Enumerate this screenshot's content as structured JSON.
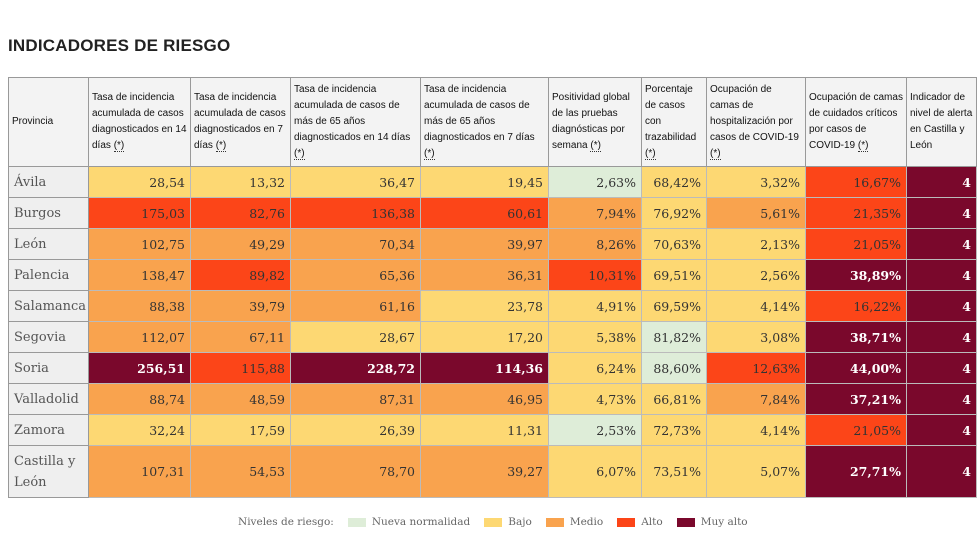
{
  "title": "INDICADORES DE RIESGO",
  "colors": {
    "G": "#deedd8",
    "Y": "#fdd873",
    "O": "#f9a34e",
    "R": "#fc4518",
    "D": "#7a082c"
  },
  "headers": [
    {
      "text": "Provincia",
      "ast": ""
    },
    {
      "text": "Tasa de incidencia acumulada de casos diagnosticados en 14 días ",
      "ast": "(*)"
    },
    {
      "text": "Tasa de incidencia acumulada de casos diagnosticados en 7 días ",
      "ast": "(*)"
    },
    {
      "text": "Tasa de incidencia acumulada de casos de más de 65 años diagnosticados en 14 días ",
      "ast": "(*)"
    },
    {
      "text": "Tasa de incidencia acumulada de casos de más de 65 años diagnosticados en 7 días ",
      "ast": "(*)"
    },
    {
      "text": "Positividad global de las pruebas diagnósticas por semana ",
      "ast": "(*)"
    },
    {
      "text": "Porcentaje de casos con trazabilidad ",
      "ast": "(*)"
    },
    {
      "text": "Ocupación de camas de hospitalización por casos de COVID-19 ",
      "ast": "(*)"
    },
    {
      "text": "Ocupación de camas de cuidados críticos por casos de COVID-19 ",
      "ast": "(*)"
    },
    {
      "text": "Indicador de nivel de alerta en Castilla y León",
      "ast": ""
    }
  ],
  "rows": [
    {
      "name": "Ávila",
      "values": [
        "28,54",
        "13,32",
        "36,47",
        "19,45",
        "2,63%",
        "68,42%",
        "3,32%",
        "16,67%",
        "4"
      ],
      "levels": [
        "Y",
        "Y",
        "Y",
        "Y",
        "G",
        "Y",
        "Y",
        "R",
        "D"
      ]
    },
    {
      "name": "Burgos",
      "values": [
        "175,03",
        "82,76",
        "136,38",
        "60,61",
        "7,94%",
        "76,92%",
        "5,61%",
        "21,35%",
        "4"
      ],
      "levels": [
        "R",
        "R",
        "R",
        "R",
        "O",
        "Y",
        "O",
        "R",
        "D"
      ]
    },
    {
      "name": "León",
      "values": [
        "102,75",
        "49,29",
        "70,34",
        "39,97",
        "8,26%",
        "70,63%",
        "2,13%",
        "21,05%",
        "4"
      ],
      "levels": [
        "O",
        "O",
        "O",
        "O",
        "O",
        "Y",
        "Y",
        "R",
        "D"
      ]
    },
    {
      "name": "Palencia",
      "values": [
        "138,47",
        "89,82",
        "65,36",
        "36,31",
        "10,31%",
        "69,51%",
        "2,56%",
        "38,89%",
        "4"
      ],
      "levels": [
        "O",
        "R",
        "O",
        "O",
        "R",
        "Y",
        "Y",
        "D",
        "D"
      ]
    },
    {
      "name": "Salamanca",
      "values": [
        "88,38",
        "39,79",
        "61,16",
        "23,78",
        "4,91%",
        "69,59%",
        "4,14%",
        "16,22%",
        "4"
      ],
      "levels": [
        "O",
        "O",
        "O",
        "Y",
        "Y",
        "Y",
        "Y",
        "R",
        "D"
      ]
    },
    {
      "name": "Segovia",
      "values": [
        "112,07",
        "67,11",
        "28,67",
        "17,20",
        "5,38%",
        "81,82%",
        "3,08%",
        "38,71%",
        "4"
      ],
      "levels": [
        "O",
        "O",
        "Y",
        "Y",
        "Y",
        "G",
        "Y",
        "D",
        "D"
      ]
    },
    {
      "name": "Soria",
      "values": [
        "256,51",
        "115,88",
        "228,72",
        "114,36",
        "6,24%",
        "88,60%",
        "12,63%",
        "44,00%",
        "4"
      ],
      "levels": [
        "D",
        "R",
        "D",
        "D",
        "Y",
        "G",
        "R",
        "D",
        "D"
      ]
    },
    {
      "name": "Valladolid",
      "values": [
        "88,74",
        "48,59",
        "87,31",
        "46,95",
        "4,73%",
        "66,81%",
        "7,84%",
        "37,21%",
        "4"
      ],
      "levels": [
        "O",
        "O",
        "O",
        "O",
        "Y",
        "Y",
        "O",
        "D",
        "D"
      ]
    },
    {
      "name": "Zamora",
      "values": [
        "32,24",
        "17,59",
        "26,39",
        "11,31",
        "2,53%",
        "72,73%",
        "4,14%",
        "21,05%",
        "4"
      ],
      "levels": [
        "Y",
        "Y",
        "Y",
        "Y",
        "G",
        "Y",
        "Y",
        "R",
        "D"
      ]
    },
    {
      "name": "Castilla y León",
      "values": [
        "107,31",
        "54,53",
        "78,70",
        "39,27",
        "6,07%",
        "73,51%",
        "5,07%",
        "27,71%",
        "4"
      ],
      "levels": [
        "O",
        "O",
        "O",
        "O",
        "Y",
        "Y",
        "Y",
        "D",
        "D"
      ]
    }
  ],
  "legend": {
    "label": "Niveles de riesgo:",
    "items": [
      {
        "label": "Nueva normalidad",
        "level": "G"
      },
      {
        "label": "Bajo",
        "level": "Y"
      },
      {
        "label": "Medio",
        "level": "O"
      },
      {
        "label": "Alto",
        "level": "R"
      },
      {
        "label": "Muy alto",
        "level": "D"
      }
    ]
  }
}
